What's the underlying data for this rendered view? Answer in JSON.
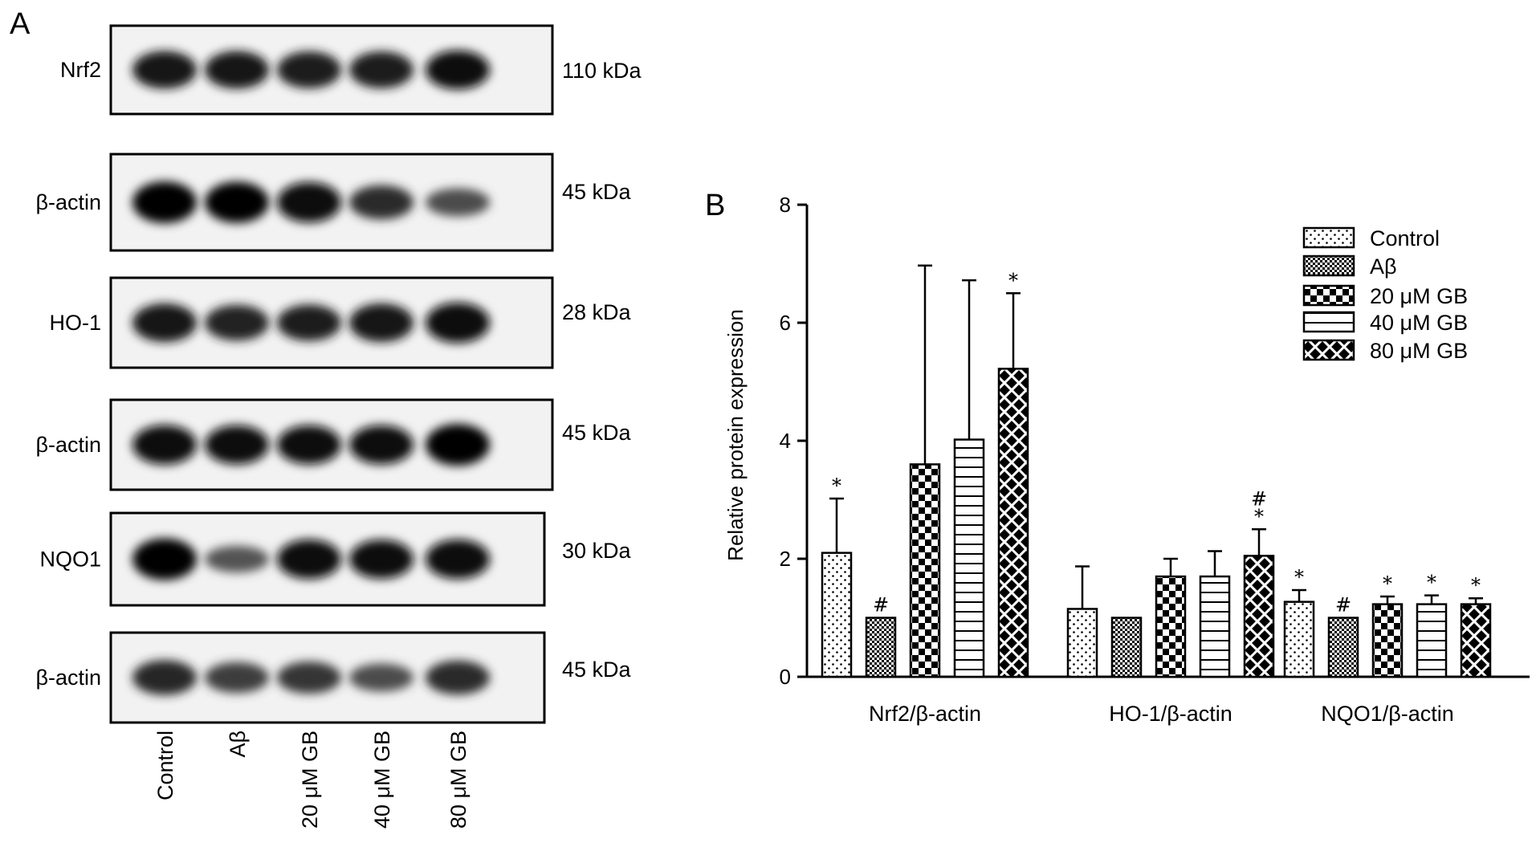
{
  "panel_a": {
    "label": "A",
    "blots": [
      {
        "protein": "Nrf2",
        "kda": "110 kDa",
        "bands": [
          0.85,
          0.85,
          0.82,
          0.82,
          0.9
        ]
      },
      {
        "protein": "β-actin",
        "kda": "45 kDa",
        "bands": [
          1.0,
          0.98,
          0.95,
          0.72,
          0.5
        ]
      },
      {
        "protein": "HO-1",
        "kda": "28 kDa",
        "bands": [
          0.88,
          0.78,
          0.8,
          0.88,
          0.95
        ]
      },
      {
        "protein": "β-actin",
        "kda": "45 kDa",
        "bands": [
          0.92,
          0.9,
          0.9,
          0.9,
          1.0
        ]
      },
      {
        "protein": "NQO1",
        "kda": "30 kDa",
        "bands": [
          1.0,
          0.45,
          0.92,
          0.9,
          0.92
        ]
      },
      {
        "protein": "β-actin",
        "kda": "45 kDa",
        "bands": [
          0.75,
          0.6,
          0.65,
          0.5,
          0.72
        ]
      }
    ],
    "lanes": [
      "Control",
      "Aβ",
      "20 μM GB",
      "40 μM GB",
      "80 μM GB"
    ]
  },
  "panel_b": {
    "label": "B"
  },
  "chart_data": {
    "type": "bar",
    "ylabel": "Relative protein expression",
    "xlabel": "",
    "ylim": [
      0,
      8
    ],
    "yticks": [
      "0",
      "2",
      "4",
      "6",
      "8"
    ],
    "categories": [
      "Nrf2/β-actin",
      "HO-1/β-actin",
      "NQO1/β-actin"
    ],
    "legend_position": "top-right",
    "series": [
      {
        "name": "Control",
        "pattern": "dots",
        "values": [
          2.1,
          1.15,
          1.27
        ],
        "errors": [
          0.92,
          0.72,
          0.2
        ],
        "annotations": [
          "*",
          "",
          "*"
        ]
      },
      {
        "name": "Aβ",
        "pattern": "checker-fine",
        "values": [
          1.0,
          1.0,
          1.0
        ],
        "errors": [
          0,
          0,
          0
        ],
        "annotations": [
          "#",
          "",
          "#"
        ]
      },
      {
        "name": "20 μM GB",
        "pattern": "checker-large",
        "values": [
          3.6,
          1.7,
          1.23
        ],
        "errors": [
          3.37,
          0.3,
          0.13
        ],
        "annotations": [
          "",
          "",
          "*"
        ]
      },
      {
        "name": "40 μM GB",
        "pattern": "horizontal-lines",
        "values": [
          4.02,
          1.7,
          1.23
        ],
        "errors": [
          2.7,
          0.43,
          0.15
        ],
        "annotations": [
          "",
          "",
          "*"
        ]
      },
      {
        "name": "80 μM GB",
        "pattern": "crosshatch",
        "values": [
          5.22,
          2.05,
          1.23
        ],
        "errors": [
          1.28,
          0.45,
          0.1
        ],
        "annotations": [
          "*",
          "#*",
          "*"
        ]
      }
    ]
  }
}
